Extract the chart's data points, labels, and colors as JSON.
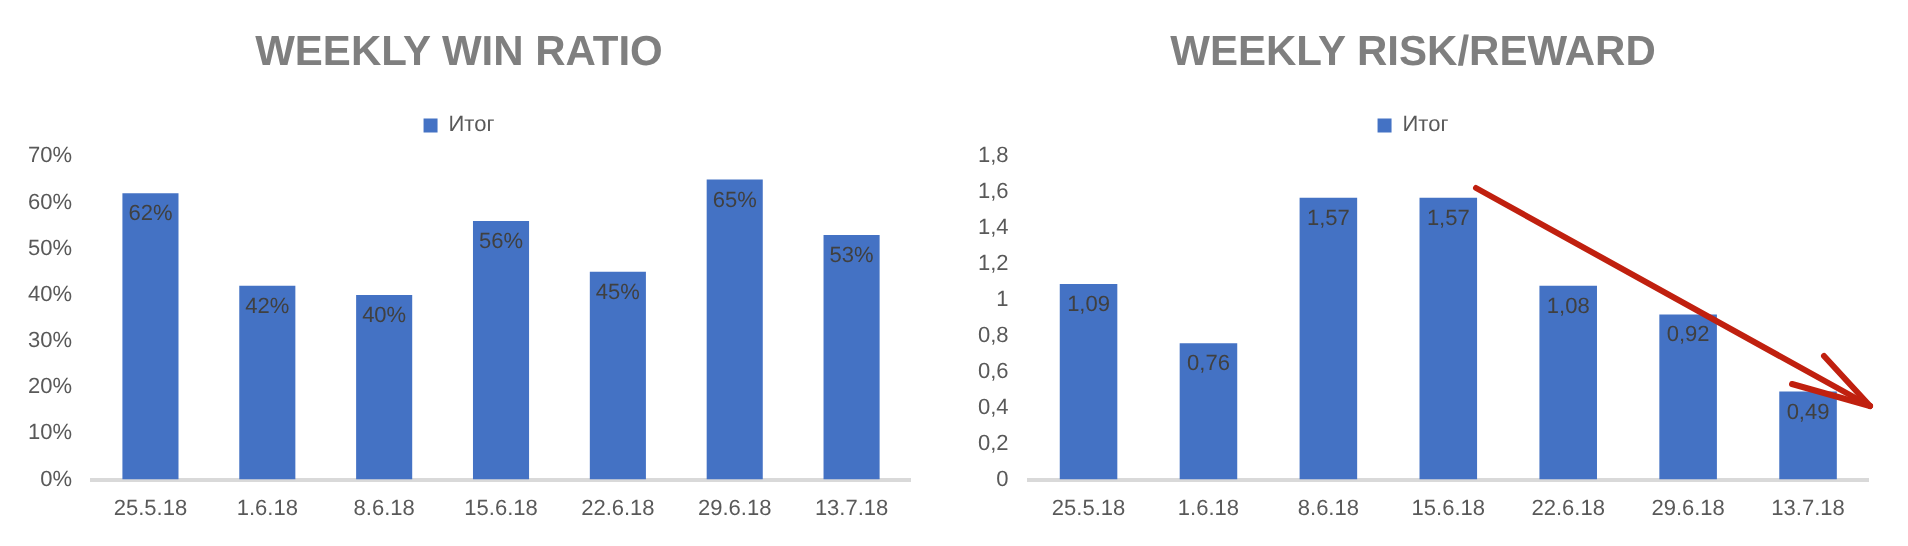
{
  "chart_data": [
    {
      "type": "bar",
      "title": "WEEKLY WIN RATIO",
      "categories": [
        "25.5.18",
        "1.6.18",
        "8.6.18",
        "15.6.18",
        "22.6.18",
        "29.6.18",
        "13.7.18"
      ],
      "series": [
        {
          "name": "Итог",
          "color": "#4472c4",
          "values": [
            62,
            42,
            40,
            56,
            45,
            65,
            53
          ],
          "value_labels": [
            "62%",
            "42%",
            "40%",
            "56%",
            "45%",
            "65%",
            "53%"
          ]
        }
      ],
      "ylim": [
        0,
        70
      ],
      "yticks": [
        {
          "value": 0,
          "label": "0%"
        },
        {
          "value": 10,
          "label": "10%"
        },
        {
          "value": 20,
          "label": "20%"
        },
        {
          "value": 30,
          "label": "30%"
        },
        {
          "value": 40,
          "label": "40%"
        },
        {
          "value": 50,
          "label": "50%"
        },
        {
          "value": 60,
          "label": "60%"
        },
        {
          "value": 70,
          "label": "70%"
        }
      ],
      "grid": false,
      "legend": "top"
    },
    {
      "type": "bar",
      "title": "WEEKLY RISK/REWARD",
      "categories": [
        "25.5.18",
        "1.6.18",
        "8.6.18",
        "15.6.18",
        "22.6.18",
        "29.6.18",
        "13.7.18"
      ],
      "series": [
        {
          "name": "Итог",
          "color": "#4472c4",
          "values": [
            1.09,
            0.76,
            1.57,
            1.57,
            1.08,
            0.92,
            0.49
          ],
          "value_labels": [
            "1,09",
            "0,76",
            "1,57",
            "1,57",
            "1,08",
            "0,92",
            "0,49"
          ]
        }
      ],
      "ylim": [
        0,
        1.8
      ],
      "yticks": [
        0,
        {
          "value": 0.2,
          "label": "0,2"
        },
        {
          "value": 0.4,
          "label": "0,4"
        },
        {
          "value": 0.6,
          "label": "0,6"
        },
        {
          "value": 0.8,
          "label": "0,8"
        },
        1,
        {
          "value": 1.2,
          "label": "1,2"
        },
        {
          "value": 1.4,
          "label": "1,4"
        },
        {
          "value": 1.6,
          "label": "1,6"
        },
        {
          "value": 1.8,
          "label": "1,8"
        }
      ],
      "grid": false,
      "legend": "top"
    }
  ]
}
